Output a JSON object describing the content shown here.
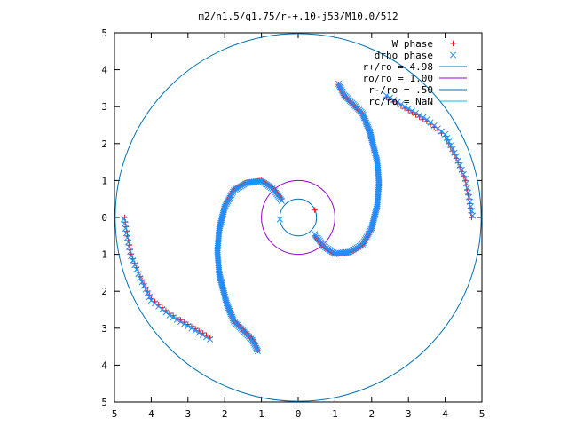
{
  "chart_data": {
    "type": "scatter",
    "title": "m2/n1.5/q1.75/r-+.10-j53/M10.0/512",
    "xlim": [
      -5,
      5
    ],
    "ylim": [
      -5,
      5
    ],
    "x_ticks": [
      -5,
      -4,
      -3,
      -2,
      -1,
      0,
      1,
      2,
      3,
      4,
      5
    ],
    "y_ticks": [
      -5,
      -4,
      -3,
      -2,
      -1,
      0,
      1,
      2,
      3,
      4,
      5
    ],
    "x_tick_labels": [
      "5",
      "4",
      "3",
      "2",
      "1",
      "0",
      "1",
      "2",
      "3",
      "4",
      "5"
    ],
    "y_tick_labels": [
      "5",
      "4",
      "3",
      "2",
      "1",
      "0",
      "1",
      "2",
      "3",
      "4",
      "5"
    ],
    "grid": false,
    "legend_position": "top-right",
    "circles": [
      {
        "label": "r+/ro = 4.98",
        "radius": 4.98,
        "color": "#0072b2"
      },
      {
        "label": "ro/ro = 1.00",
        "radius": 1.0,
        "color": "#9400d3"
      },
      {
        "label": "r-/ro = .50",
        "radius": 0.5,
        "color": "#0072b2"
      },
      {
        "label": "rc/ro = NaN",
        "radius": null,
        "color": "#00bfff"
      }
    ],
    "series": [
      {
        "name": "W phase",
        "marker": "+",
        "color": "#e41a1c",
        "paths": [
          [
            [
              0.45,
              -0.5
            ],
            [
              0.7,
              -0.8
            ],
            [
              1.0,
              -1.0
            ],
            [
              1.4,
              -0.95
            ],
            [
              1.75,
              -0.75
            ],
            [
              2.0,
              -0.3
            ],
            [
              2.15,
              0.3
            ],
            [
              2.2,
              0.9
            ],
            [
              2.15,
              1.5
            ],
            [
              1.95,
              2.3
            ],
            [
              1.75,
              2.8
            ],
            [
              1.25,
              3.3
            ],
            [
              1.1,
              3.6
            ]
          ],
          [
            [
              -0.45,
              0.5
            ],
            [
              -0.7,
              0.8
            ],
            [
              -1.0,
              1.0
            ],
            [
              -1.4,
              0.95
            ],
            [
              -1.75,
              0.75
            ],
            [
              -2.0,
              0.3
            ],
            [
              -2.15,
              -0.3
            ],
            [
              -2.2,
              -0.9
            ],
            [
              -2.15,
              -1.5
            ],
            [
              -1.95,
              -2.3
            ],
            [
              -1.75,
              -2.8
            ],
            [
              -1.25,
              -3.3
            ],
            [
              -1.1,
              -3.6
            ]
          ],
          [
            [
              2.4,
              3.25
            ],
            [
              3.5,
              2.6
            ],
            [
              4.0,
              2.2
            ],
            [
              4.3,
              1.6
            ],
            [
              4.55,
              1.0
            ],
            [
              4.65,
              0.5
            ],
            [
              4.72,
              0.0
            ]
          ],
          [
            [
              -2.4,
              -3.25
            ],
            [
              -3.5,
              -2.6
            ],
            [
              -4.0,
              -2.2
            ],
            [
              -4.3,
              -1.6
            ],
            [
              -4.55,
              -1.0
            ],
            [
              -4.65,
              -0.5
            ],
            [
              -4.72,
              0.0
            ]
          ]
        ]
      },
      {
        "name": "drho phase",
        "marker": "x",
        "color": "#1e90ff",
        "paths": [
          [
            [
              0.45,
              -0.45
            ],
            [
              0.7,
              -0.78
            ],
            [
              1.0,
              -0.98
            ],
            [
              1.4,
              -0.93
            ],
            [
              1.75,
              -0.73
            ],
            [
              2.0,
              -0.28
            ],
            [
              2.15,
              0.32
            ],
            [
              2.2,
              0.92
            ],
            [
              2.15,
              1.52
            ],
            [
              1.95,
              2.32
            ],
            [
              1.75,
              2.82
            ],
            [
              1.25,
              3.32
            ],
            [
              1.1,
              3.62
            ]
          ],
          [
            [
              -0.45,
              0.45
            ],
            [
              -0.7,
              0.78
            ],
            [
              -1.0,
              0.98
            ],
            [
              -1.4,
              0.93
            ],
            [
              -1.75,
              0.73
            ],
            [
              -2.0,
              0.28
            ],
            [
              -2.15,
              -0.32
            ],
            [
              -2.2,
              -0.92
            ],
            [
              -2.15,
              -1.52
            ],
            [
              -1.95,
              -2.32
            ],
            [
              -1.75,
              -2.82
            ],
            [
              -1.25,
              -3.32
            ],
            [
              -1.1,
              -3.62
            ]
          ],
          [
            [
              2.4,
              3.3
            ],
            [
              3.5,
              2.65
            ],
            [
              4.0,
              2.25
            ],
            [
              4.3,
              1.65
            ],
            [
              4.55,
              1.05
            ],
            [
              4.65,
              0.55
            ],
            [
              4.75,
              0.05
            ]
          ],
          [
            [
              -2.4,
              -3.3
            ],
            [
              -3.5,
              -2.65
            ],
            [
              -4.0,
              -2.25
            ],
            [
              -4.3,
              -1.65
            ],
            [
              -4.55,
              -1.05
            ],
            [
              -4.65,
              -0.55
            ],
            [
              -4.75,
              -0.05
            ]
          ]
        ]
      }
    ],
    "inner_points": [
      {
        "series": "drho phase",
        "x": -0.5,
        "y": -0.05
      },
      {
        "series": "W phase",
        "x": 0.45,
        "y": 0.2
      }
    ]
  }
}
